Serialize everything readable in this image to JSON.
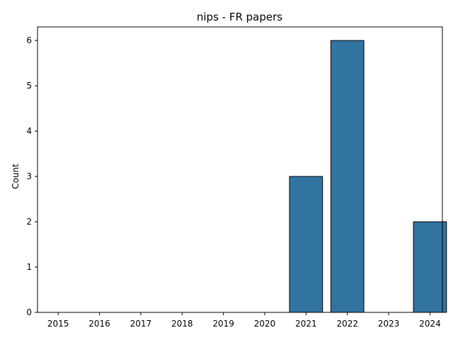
{
  "chart_data": {
    "type": "bar",
    "title": "nips - FR papers",
    "xlabel": "",
    "ylabel": "Count",
    "categories": [
      "2015",
      "2016",
      "2017",
      "2018",
      "2019",
      "2020",
      "2021",
      "2022",
      "2023",
      "2024"
    ],
    "values": [
      0,
      0,
      0,
      0,
      0,
      0,
      3,
      6,
      0,
      2
    ],
    "ylim": [
      0,
      6.3
    ],
    "yticks": [
      "0",
      "1",
      "2",
      "3",
      "4",
      "5",
      "6"
    ],
    "grid": false,
    "legend": "none",
    "colors": {
      "bar": "#3274a1",
      "bar_edge": "#000000",
      "axis": "#000000"
    }
  }
}
